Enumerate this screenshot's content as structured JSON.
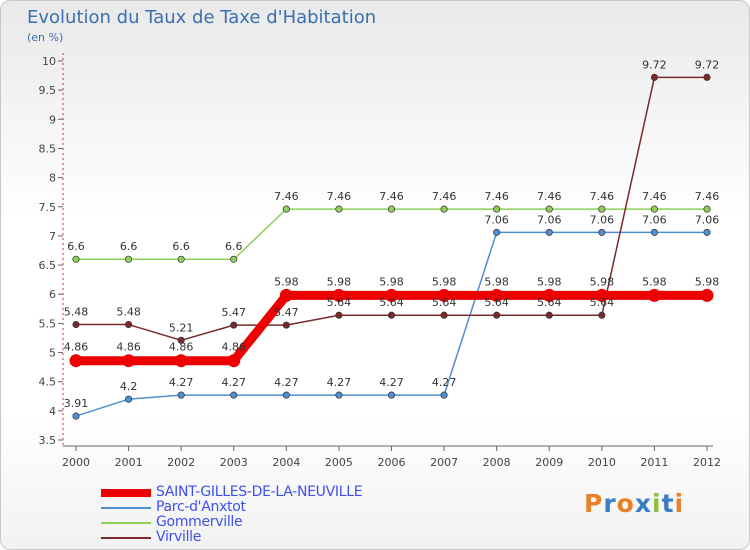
{
  "header": {
    "title": "Evolution du Taux de Taxe d'Habitation",
    "subtitle": "(en %)"
  },
  "logo": {
    "text": "Proxiti",
    "colors": [
      "#e8802a",
      "#3a7fc4",
      "#e8802a",
      "#3a7fc4",
      "#8cbf3f",
      "#3a7fc4",
      "#e8802a"
    ]
  },
  "chart_data": {
    "type": "line",
    "title": "Evolution du Taux de Taxe d'Habitation",
    "ylabel": "(en %)",
    "x": [
      "2000",
      "2001",
      "2002",
      "2003",
      "2004",
      "2005",
      "2006",
      "2007",
      "2008",
      "2009",
      "2010",
      "2011",
      "2012"
    ],
    "ylim": [
      3.5,
      10
    ],
    "yticks": [
      "3.5",
      "4",
      "4.5",
      "5",
      "5.5",
      "6",
      "6.5",
      "7",
      "7.5",
      "8",
      "8.5",
      "9",
      "9.5",
      "10"
    ],
    "grid": false,
    "legend": "bottom-left",
    "series": [
      {
        "name": "SAINT-GILLES-DE-LA-NEUVILLE",
        "color": "#ee0000",
        "values": [
          4.86,
          4.86,
          4.86,
          4.86,
          5.98,
          5.98,
          5.98,
          5.98,
          5.98,
          5.98,
          5.98,
          5.98,
          5.98
        ],
        "labels": [
          "4.86",
          "4.86",
          "4.86",
          "4.86",
          "5.98",
          "5.98",
          "5.98",
          "5.98",
          "5.98",
          "5.98",
          "5.98",
          "5.98",
          "5.98"
        ]
      },
      {
        "name": "Parc-d'Anxtot",
        "color": "#4f8fd0",
        "values": [
          3.91,
          4.2,
          4.27,
          4.27,
          4.27,
          4.27,
          4.27,
          4.27,
          7.06,
          7.06,
          7.06,
          7.06,
          7.06
        ],
        "labels": [
          "3.91",
          "4.2",
          "4.27",
          "4.27",
          "4.27",
          "4.27",
          "4.27",
          "4.27",
          "7.06",
          "7.06",
          "7.06",
          "7.06",
          "7.06"
        ]
      },
      {
        "name": "Gommerville",
        "color": "#8ed05a",
        "values": [
          6.6,
          6.6,
          6.6,
          6.6,
          7.46,
          7.46,
          7.46,
          7.46,
          7.46,
          7.46,
          7.46,
          7.46,
          7.46
        ],
        "labels": [
          "6.6",
          "6.6",
          "6.6",
          "6.6",
          "7.46",
          "7.46",
          "7.46",
          "7.46",
          "7.46",
          "7.46",
          "7.46",
          "7.46",
          "7.46"
        ]
      },
      {
        "name": "Virville",
        "color": "#7a2a2a",
        "values": [
          5.48,
          5.48,
          5.21,
          5.47,
          5.47,
          5.64,
          5.64,
          5.64,
          5.64,
          5.64,
          5.64,
          9.72,
          9.72
        ],
        "labels": [
          "5.48",
          "5.48",
          "5.21",
          "5.47",
          "5.47",
          "5.64",
          "5.64",
          "5.64",
          "5.64",
          "5.64",
          "5.64",
          "9.72",
          "9.72"
        ]
      }
    ]
  }
}
